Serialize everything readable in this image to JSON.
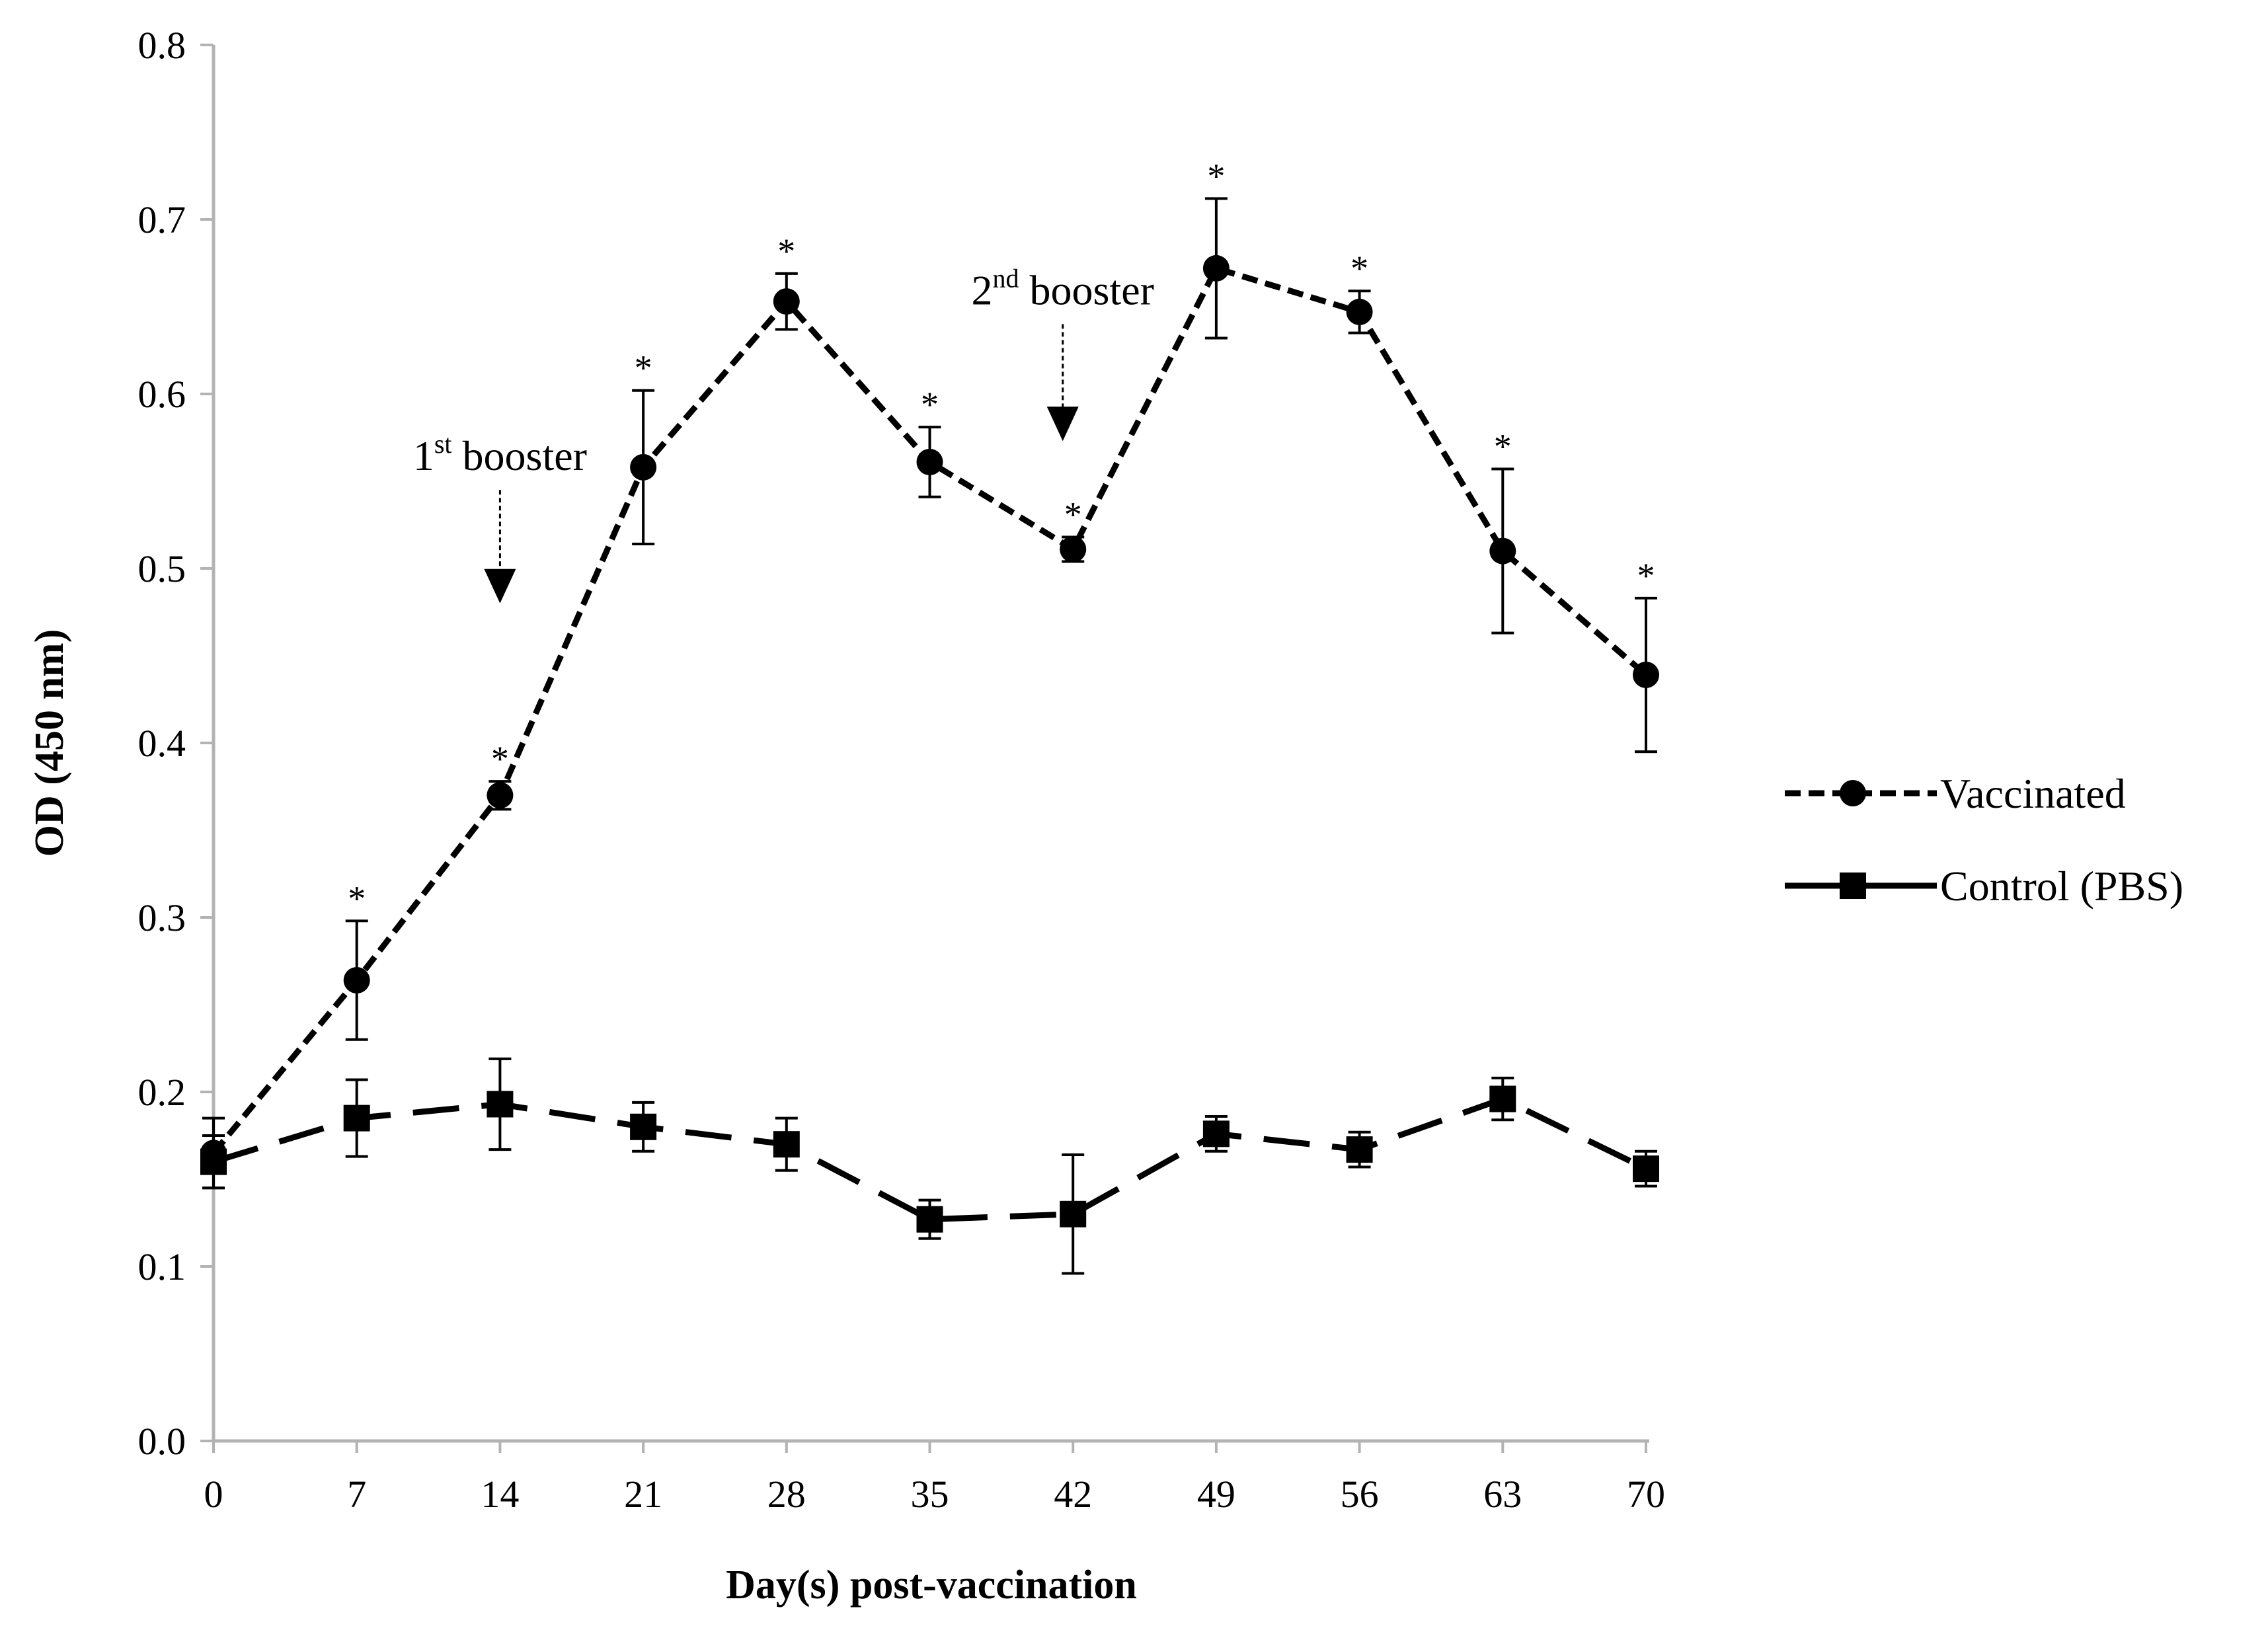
{
  "chart_data": {
    "type": "line",
    "title": "",
    "xlabel": "Day(s) post-vaccination",
    "ylabel": "OD (450 nm)",
    "xlim": [
      0,
      70
    ],
    "ylim": [
      0.0,
      0.8
    ],
    "x": [
      0,
      7,
      14,
      21,
      28,
      35,
      42,
      49,
      56,
      63,
      70
    ],
    "x_tick_labels": [
      "0",
      "7",
      "14",
      "21",
      "28",
      "35",
      "42",
      "49",
      "56",
      "63",
      "70"
    ],
    "y_ticks": [
      0.0,
      0.1,
      0.2,
      0.3,
      0.4,
      0.5,
      0.6,
      0.7,
      0.8
    ],
    "y_tick_labels": [
      "0.0",
      "0.1",
      "0.2",
      "0.3",
      "0.4",
      "0.5",
      "0.6",
      "0.7",
      "0.8"
    ],
    "grid": false,
    "legend_position": "right",
    "series": [
      {
        "name": "Vaccinated",
        "line_style": "dashed",
        "marker": "circle",
        "color": "#000000",
        "values": [
          0.165,
          0.264,
          0.37,
          0.558,
          0.653,
          0.561,
          0.511,
          0.672,
          0.647,
          0.51,
          0.439
        ],
        "errors": [
          0.02,
          0.034,
          0.008,
          0.044,
          0.016,
          0.02,
          0.007,
          0.04,
          0.012,
          0.047,
          0.044
        ],
        "significance": [
          "",
          "*",
          "*",
          "*",
          "*",
          "*",
          "*",
          "*",
          "*",
          "*",
          "*"
        ]
      },
      {
        "name": "Control (PBS)",
        "line_style": "long-dash",
        "marker": "square",
        "color": "#000000",
        "values": [
          0.16,
          0.185,
          0.193,
          0.18,
          0.17,
          0.127,
          0.13,
          0.176,
          0.167,
          0.196,
          0.156
        ],
        "errors": [
          0.015,
          0.022,
          0.026,
          0.014,
          0.015,
          0.011,
          0.034,
          0.01,
          0.01,
          0.012,
          0.01
        ]
      }
    ],
    "annotations": [
      {
        "id": "first",
        "base": "1",
        "sup": "st",
        "text": " booster",
        "x": 14,
        "arrow_top": 0.545,
        "arrow_bottom": 0.48
      },
      {
        "id": "second",
        "base": "2",
        "sup": "nd",
        "text": " booster",
        "x": 41.5,
        "arrow_top": 0.64,
        "arrow_bottom": 0.573
      }
    ]
  }
}
